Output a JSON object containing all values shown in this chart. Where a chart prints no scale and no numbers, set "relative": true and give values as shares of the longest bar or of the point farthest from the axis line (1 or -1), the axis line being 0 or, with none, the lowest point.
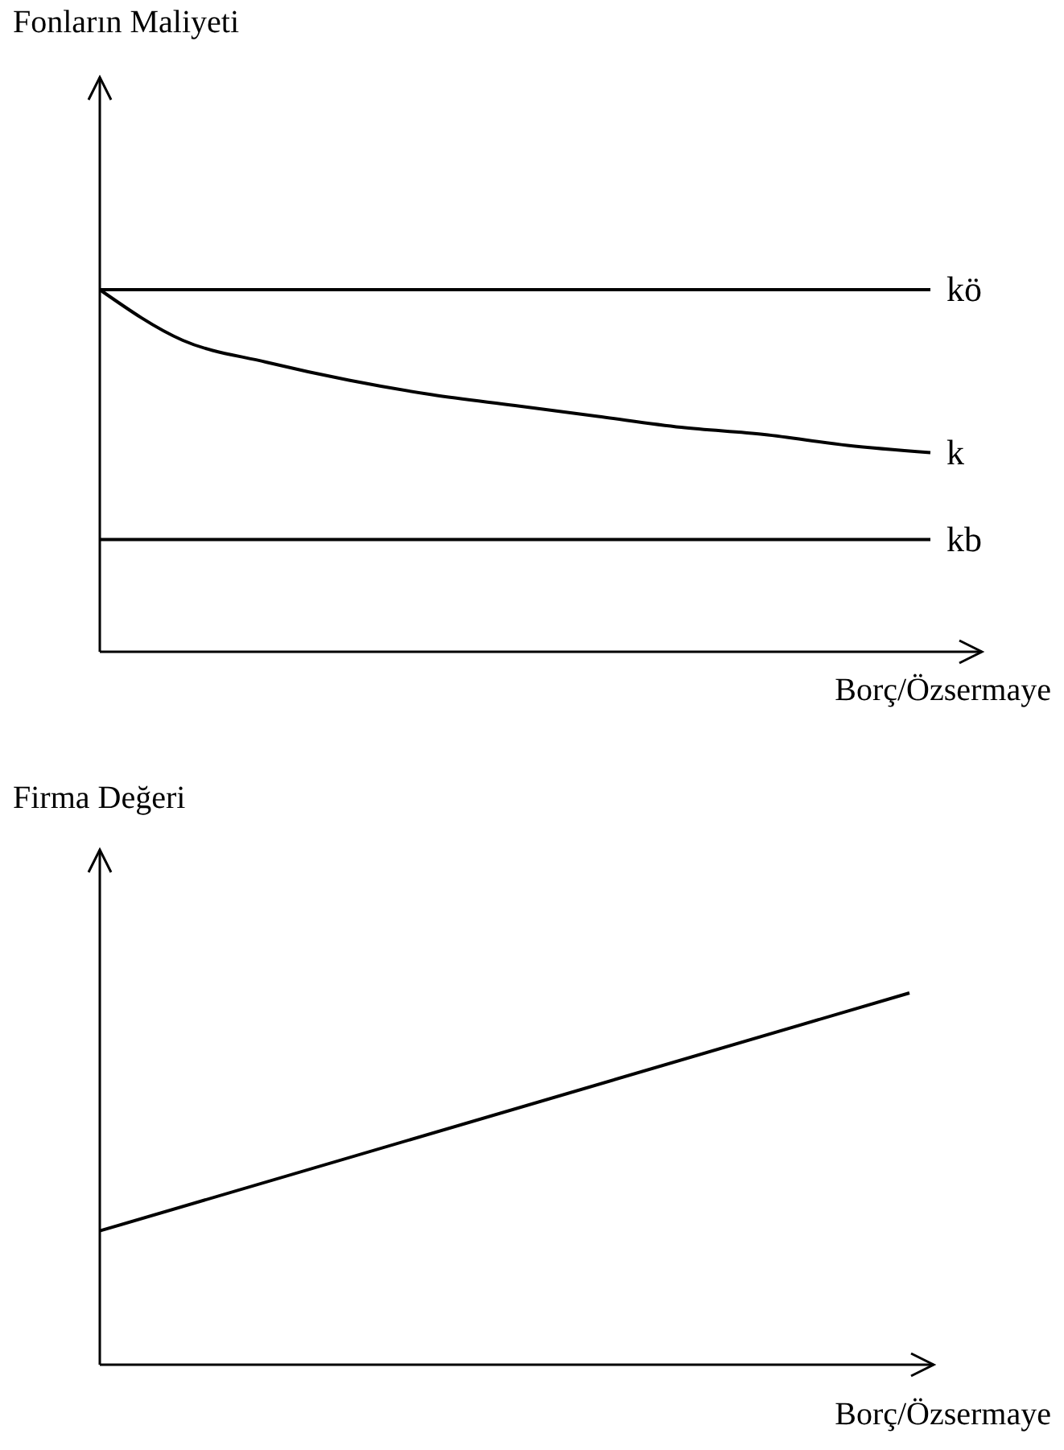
{
  "chart_data": [
    {
      "type": "line",
      "relative": true,
      "ylabel": "Fonların Maliyeti",
      "xlabel": "Borç/Özsermaye",
      "categories": [
        null,
        null,
        null,
        null,
        null,
        null,
        null,
        null,
        null,
        null,
        null
      ],
      "series": [
        {
          "name": "kö",
          "color": "#000000",
          "values": [
            1,
            1,
            1,
            1,
            1,
            1,
            1,
            1,
            1,
            1,
            1
          ]
        },
        {
          "name": "k",
          "color": "#000000",
          "values": [
            1,
            0.86,
            0.8,
            0.75,
            0.71,
            0.68,
            0.65,
            0.62,
            0.6,
            0.57,
            0.55
          ]
        },
        {
          "name": "kb",
          "color": "#000000",
          "values": [
            0.31,
            0.31,
            0.31,
            0.31,
            0.31,
            0.31,
            0.31,
            0.31,
            0.31,
            0.31,
            0.31
          ]
        }
      ]
    },
    {
      "type": "line",
      "relative": true,
      "ylabel": "Firma Değeri",
      "xlabel": "Borç/Özsermaye",
      "categories": [
        null,
        null
      ],
      "series": [
        {
          "color": "#000000",
          "values": [
            0.36,
            1
          ]
        }
      ]
    }
  ]
}
